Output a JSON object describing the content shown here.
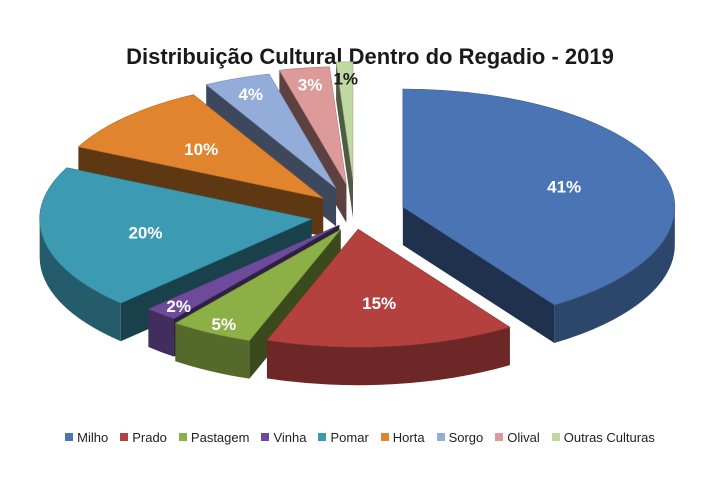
{
  "chart_data": {
    "type": "pie",
    "title": "Distribuição Cultural Dentro do Regadio - 2019",
    "legend_position": "bottom",
    "slices": [
      {
        "name": "Milho",
        "value": 41,
        "label": "41%",
        "color": "#4A74B4"
      },
      {
        "name": "Prado",
        "value": 15,
        "label": "15%",
        "color": "#B5413F"
      },
      {
        "name": "Pastagem",
        "value": 5,
        "label": "5%",
        "color": "#8CAF46"
      },
      {
        "name": "Vinha",
        "value": 2,
        "label": "2%",
        "color": "#6E4B9A"
      },
      {
        "name": "Pomar",
        "value": 20,
        "label": "20%",
        "color": "#3C9AB3"
      },
      {
        "name": "Horta",
        "value": 10,
        "label": "10%",
        "color": "#E0842E"
      },
      {
        "name": "Sorgo",
        "value": 4,
        "label": "4%",
        "color": "#94ACDA"
      },
      {
        "name": "Olival",
        "value": 3,
        "label": "3%",
        "color": "#DC9A98"
      },
      {
        "name": "Outras Culturas",
        "value": 1,
        "label": "1%",
        "color": "#BFD9A0"
      }
    ]
  }
}
